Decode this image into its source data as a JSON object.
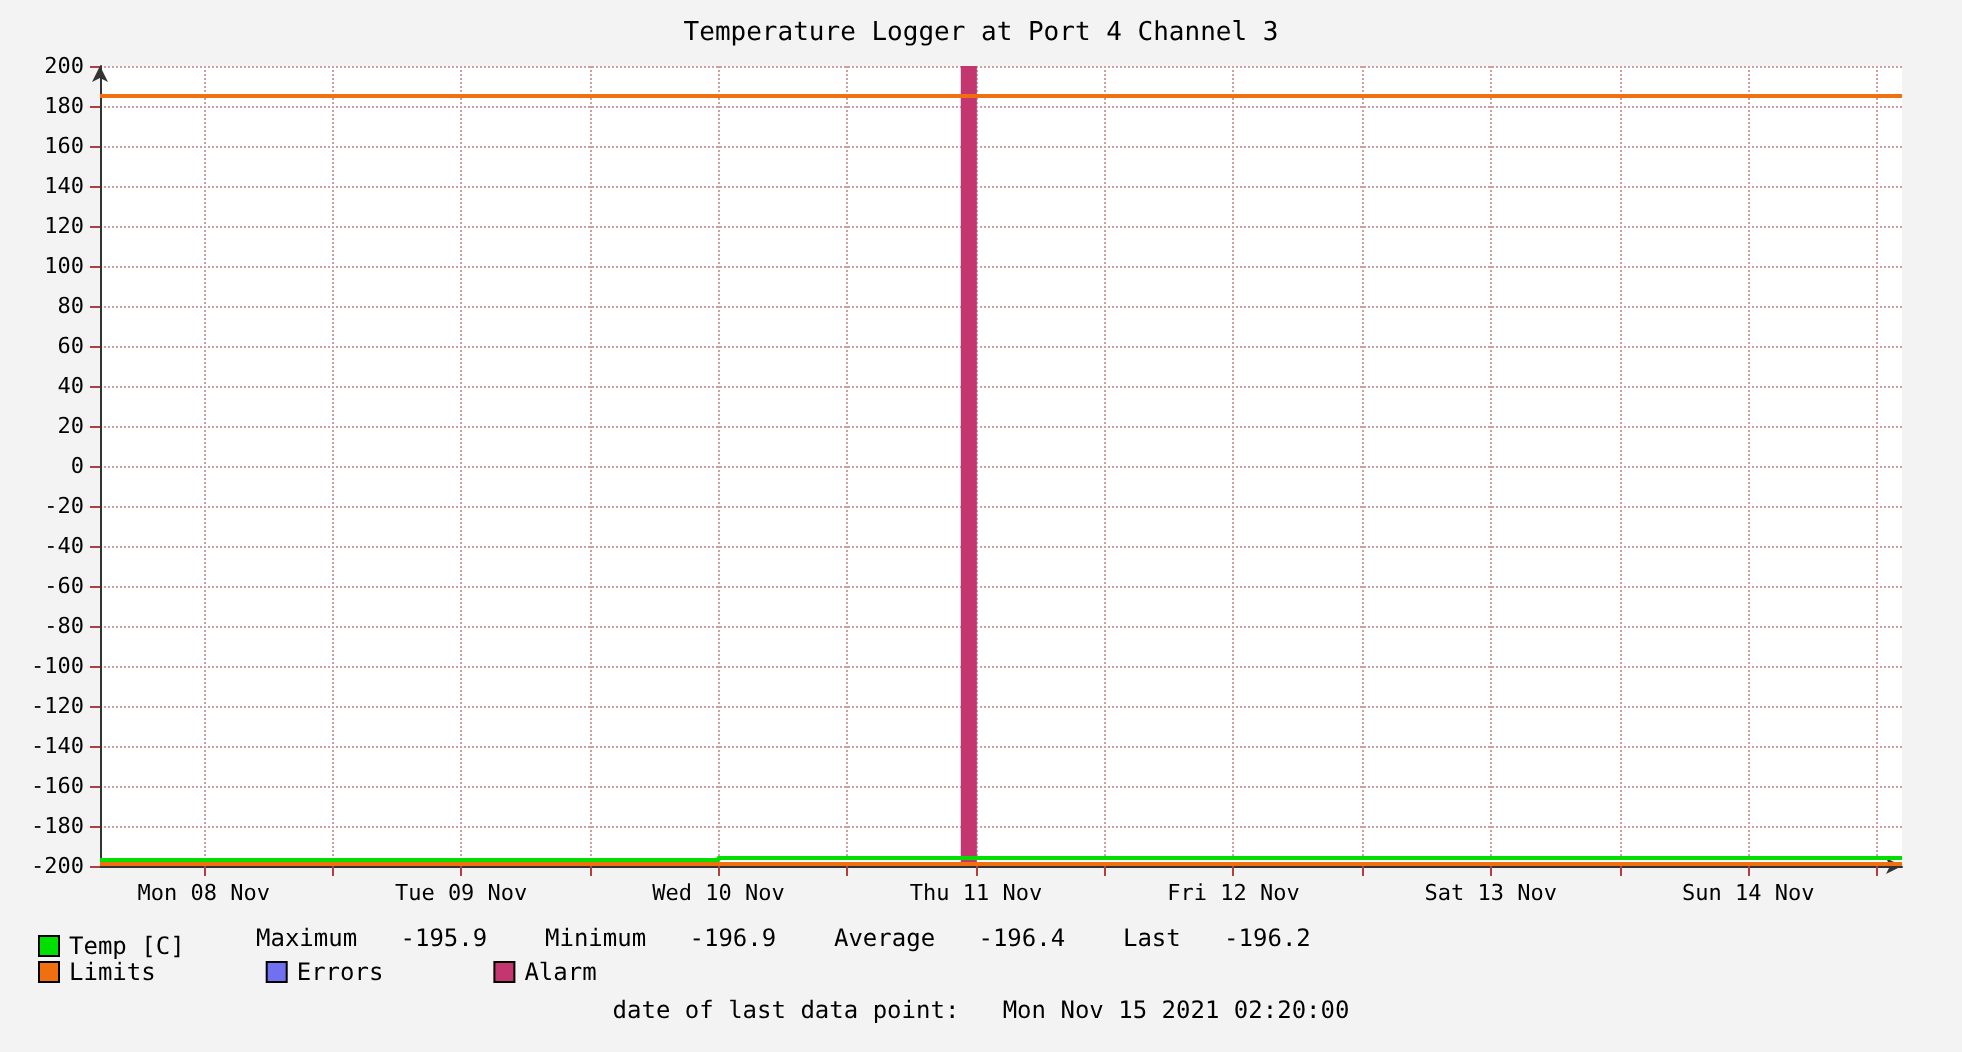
{
  "chart_data": {
    "type": "line",
    "title": "Temperature Logger at Port 4 Channel 3",
    "xlim": [
      "2021-11-08T02:20",
      "2021-11-15T02:20"
    ],
    "xticks": [
      {
        "value": "2021-11-08T12:00",
        "label": "Mon 08 Nov"
      },
      {
        "value": "2021-11-09T00:00",
        "label": null
      },
      {
        "value": "2021-11-09T12:00",
        "label": "Tue 09 Nov"
      },
      {
        "value": "2021-11-10T00:00",
        "label": null
      },
      {
        "value": "2021-11-10T12:00",
        "label": "Wed 10 Nov"
      },
      {
        "value": "2021-11-11T00:00",
        "label": null
      },
      {
        "value": "2021-11-11T12:00",
        "label": "Thu 11 Nov"
      },
      {
        "value": "2021-11-12T00:00",
        "label": null
      },
      {
        "value": "2021-11-12T12:00",
        "label": "Fri 12 Nov"
      },
      {
        "value": "2021-11-13T00:00",
        "label": null
      },
      {
        "value": "2021-11-13T12:00",
        "label": "Sat 13 Nov"
      },
      {
        "value": "2021-11-14T00:00",
        "label": null
      },
      {
        "value": "2021-11-14T12:00",
        "label": "Sun 14 Nov"
      },
      {
        "value": "2021-11-15T00:00",
        "label": null
      }
    ],
    "ylim": [
      -200,
      200
    ],
    "yticks": [
      -200,
      -180,
      -160,
      -140,
      -120,
      -100,
      -80,
      -60,
      -40,
      -20,
      0,
      20,
      40,
      60,
      80,
      100,
      120,
      140,
      160,
      180,
      200
    ],
    "grid": true,
    "legend": "bottom left",
    "series": [
      {
        "name": "Temp [C]",
        "type": "step",
        "color": "#00e000",
        "x": [
          "2021-11-08T02:20",
          "2021-11-10T12:00",
          "2021-11-15T02:20"
        ],
        "values": [
          -197,
          -196,
          -196
        ]
      },
      {
        "name": "Limits",
        "color": "#f07010",
        "x": [
          "2021-11-08T02:20",
          "2021-11-15T02:20"
        ],
        "values": [
          185,
          185
        ]
      },
      {
        "color": "#f07010",
        "x": [
          "2021-11-08T02:20",
          "2021-11-15T02:20"
        ],
        "values": [
          -199,
          -199
        ]
      },
      {
        "name": "Errors",
        "color": "#7070f0"
      }
    ],
    "bands": [
      {
        "axis": "x",
        "from": "2021-11-11T10:35",
        "to": "2021-11-11T12:05",
        "label": "Alarm",
        "color": "#c43670"
      }
    ],
    "annotations": [
      "Maximum   -195.9    Minimum   -196.9    Average   -196.4    Last   -196.2",
      "date of last data point:   Mon Nov 15 2021 02:20:00"
    ]
  }
}
